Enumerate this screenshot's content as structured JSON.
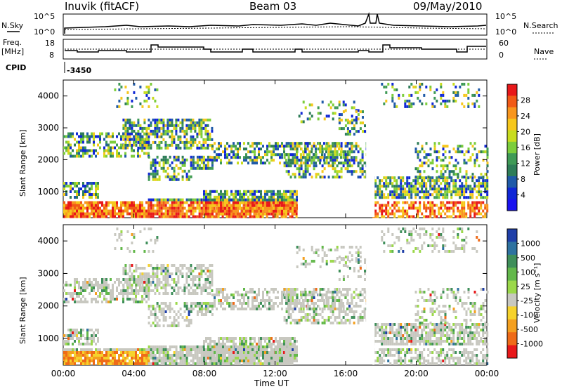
{
  "header": {
    "station": "Inuvik (fitACF)",
    "beam": "Beam 03",
    "date": "09/May/2010"
  },
  "top_panels": {
    "nsky_label": "N.Sky",
    "nsky_ticks": [
      "10^5",
      "10^0"
    ],
    "nsearch_label": "N.Search",
    "nsearch_ticks": [
      "10^5",
      "10^0"
    ],
    "freq_label_1": "Freq.",
    "freq_label_2": "[MHz]",
    "freq_ticks": [
      "18",
      "8"
    ],
    "nave_label": "Nave",
    "nave_ticks": [
      "60",
      "0"
    ],
    "cpid_label": "CPID",
    "cpid_value": "-3450"
  },
  "chart_data": [
    {
      "type": "heatmap",
      "title": "",
      "ylabel": "Slant Range [km]",
      "xlabel": "",
      "xlim": [
        "00:00",
        "00:00"
      ],
      "ylim": [
        180,
        4500
      ],
      "y_ticks": [
        "1000",
        "2000",
        "3000",
        "4000"
      ],
      "colorbar_label": "Power [dB]",
      "colorbar_ticks": [
        "28",
        "24",
        "20",
        "16",
        "12",
        "8",
        "4"
      ],
      "colorbar_colors": [
        "#e8181a",
        "#f15a17",
        "#f8961e",
        "#f6c71c",
        "#c8dc1f",
        "#7ccd3c",
        "#3f9a56",
        "#2e7d58",
        "#1f5aa8",
        "#1027d6",
        "#1a12f0"
      ]
    },
    {
      "type": "heatmap",
      "title": "",
      "ylabel": "Slant Range [km]",
      "xlabel": "Time UT",
      "x_ticks": [
        "00:00",
        "04:00",
        "08:00",
        "12:00",
        "16:00",
        "20:00",
        "00:00"
      ],
      "ylim": [
        180,
        4500
      ],
      "y_ticks": [
        "1000",
        "2000",
        "3000",
        "4000"
      ],
      "colorbar_label": "Velocity [m s⁻¹]",
      "colorbar_ticks": [
        "1000",
        "500",
        "100",
        "25",
        "-25",
        "-100",
        "-500",
        "-1000"
      ],
      "colorbar_colors": [
        "#1f3fa8",
        "#2e72a0",
        "#3f8f5a",
        "#63b84b",
        "#9bd84a",
        "#c8c8c0",
        "#f6d22c",
        "#f4a020",
        "#ef6b18",
        "#e8181a"
      ]
    }
  ]
}
